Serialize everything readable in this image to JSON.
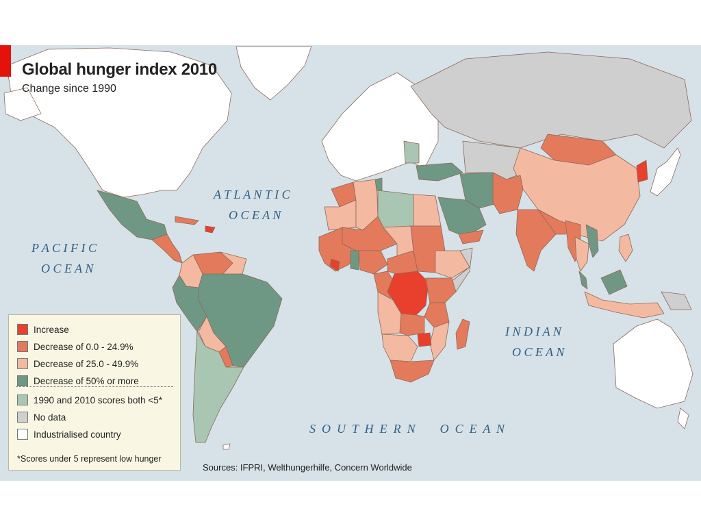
{
  "title": "Global hunger index 2010",
  "subtitle": "Change since 1990",
  "oceans": {
    "atlantic_1": "A T L A N T I C",
    "atlantic_2": "O C E A N",
    "pacific_1": "P A C I F I C",
    "pacific_2": "O C E A N",
    "indian_1": "I N D I A N",
    "indian_2": "O C E A N",
    "southern": "S  O  U  T  H  E  R  N        O  C  E  A  N"
  },
  "legend": {
    "items": [
      {
        "label": "Increase",
        "color": "#e8402d"
      },
      {
        "label": "Decrease of 0.0 - 24.9%",
        "color": "#e47a5c"
      },
      {
        "label": "Decrease of 25.0 - 49.9%",
        "color": "#f3b9a1"
      },
      {
        "label": "Decrease of 50% or more",
        "color": "#6e9884"
      },
      {
        "label": "1990 and 2010 scores both <5*",
        "color": "#a9c6b3"
      },
      {
        "label": "No data",
        "color": "#cfcfcf"
      },
      {
        "label": "Industrialised country",
        "color": "#ffffff"
      }
    ],
    "note": "*Scores under 5 represent low hunger"
  },
  "sources": "Sources: IFPRI, Welthungerhilfe, Concern Worldwide",
  "colors": {
    "ocean": "#d6e1e8",
    "increase": "#e8402d",
    "decrease_0_25": "#e47a5c",
    "decrease_25_50": "#f3b9a1",
    "decrease_50_plus": "#6e9884",
    "both_under_5": "#a9c6b3",
    "no_data": "#cfcfcf",
    "industrialised": "#ffffff",
    "accent_bar": "#e3120b"
  }
}
